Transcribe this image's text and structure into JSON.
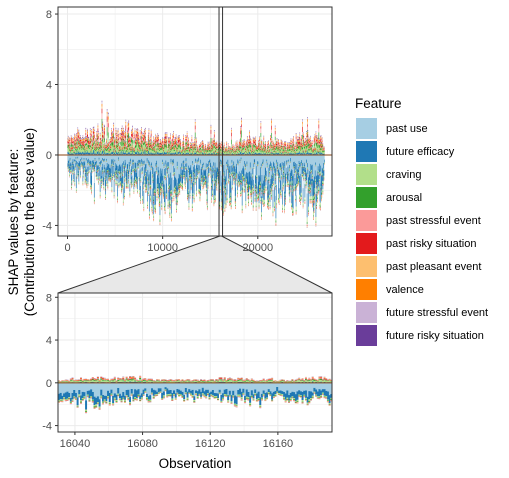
{
  "chart_data": [
    {
      "type": "area",
      "panel": "full",
      "title": "",
      "xlabel": "",
      "ylabel": "",
      "xlim": [
        -1000,
        27800
      ],
      "ylim": [
        -4.6,
        8.4
      ],
      "x_ticks": [
        0,
        10000,
        20000
      ],
      "y_ticks": [
        -4,
        0,
        4,
        8
      ],
      "grid": true,
      "zoom_window": [
        16030,
        16192
      ],
      "stack_profile": {
        "x": [
          0,
          1000,
          2000,
          3000,
          4000,
          5000,
          6000,
          7000,
          8000,
          9000,
          10000,
          11000,
          12000,
          13000,
          14000,
          15000,
          16000,
          17000,
          18000,
          19000,
          20000,
          21000,
          22000,
          23000,
          24000,
          25000,
          26000,
          27000
        ],
        "positive_extent": [
          1.2,
          1.3,
          1.4,
          1.6,
          1.5,
          1.4,
          1.8,
          1.6,
          1.5,
          1.2,
          1.1,
          1.3,
          1.0,
          0.9,
          0.8,
          0.9,
          0.8,
          0.6,
          0.9,
          1.0,
          1.1,
          0.9,
          1.0,
          0.8,
          1.0,
          1.3,
          1.2,
          1.1
        ],
        "negative_extent": [
          -1.4,
          -1.6,
          -1.8,
          -2.0,
          -1.9,
          -2.2,
          -2.4,
          -2.3,
          -2.6,
          -3.2,
          -3.3,
          -3.0,
          -2.8,
          -2.7,
          -2.5,
          -2.6,
          -2.9,
          -3.2,
          -3.0,
          -2.8,
          -3.1,
          -3.0,
          -2.9,
          -2.8,
          -3.0,
          -3.2,
          -3.3,
          -3.6
        ]
      }
    },
    {
      "type": "area",
      "panel": "zoom",
      "title": "",
      "xlabel": "Observation",
      "ylabel": "SHAP values by feature:\n(Contribution to the base value)",
      "xlim": [
        16030,
        16192
      ],
      "ylim": [
        -4.6,
        8.4
      ],
      "x_ticks": [
        16040,
        16080,
        16120,
        16160
      ],
      "y_ticks": [
        -4,
        0,
        4,
        8
      ],
      "grid": true,
      "stack_profile": {
        "x": [
          16030,
          16040,
          16050,
          16060,
          16070,
          16080,
          16090,
          16100,
          16110,
          16120,
          16130,
          16140,
          16150,
          16160,
          16170,
          16180,
          16192
        ],
        "positive_extent": [
          0.3,
          0.4,
          0.5,
          0.4,
          0.6,
          0.5,
          0.3,
          0.4,
          0.4,
          0.3,
          0.5,
          0.4,
          0.4,
          0.3,
          0.4,
          0.5,
          0.6
        ],
        "negative_extent": [
          -1.5,
          -2.0,
          -2.4,
          -2.2,
          -1.8,
          -1.6,
          -1.4,
          -1.5,
          -1.7,
          -1.6,
          -1.8,
          -1.9,
          -1.6,
          -1.5,
          -1.8,
          -2.0,
          -1.9
        ]
      }
    }
  ],
  "legend": {
    "title": "Feature",
    "position": "right",
    "items": [
      {
        "label": "past use",
        "color": "#a6cee3"
      },
      {
        "label": "future efficacy",
        "color": "#1f78b4"
      },
      {
        "label": "craving",
        "color": "#b2df8a"
      },
      {
        "label": "arousal",
        "color": "#33a02c"
      },
      {
        "label": "past stressful event",
        "color": "#fb9a99"
      },
      {
        "label": "past risky situation",
        "color": "#e31a1c"
      },
      {
        "label": "past pleasant event",
        "color": "#fdbf6f"
      },
      {
        "label": "valence",
        "color": "#ff7f00"
      },
      {
        "label": "future stressful event",
        "color": "#cab2d6"
      },
      {
        "label": "future risky situation",
        "color": "#6a3d9a"
      }
    ]
  },
  "colors": {
    "panel_background": "#ffffff",
    "grid": "#ebebeb",
    "frame": "#333333",
    "zero_line": "#8b4513",
    "zoom_connector_fill": "#e8e8e8"
  }
}
